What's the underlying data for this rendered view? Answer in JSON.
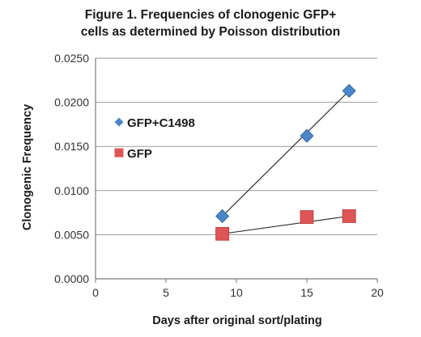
{
  "caption": {
    "line1": "Figure 1. Frequencies of clonogenic GFP+",
    "line2": "cells as determined by Poisson distribution"
  },
  "chart_data": {
    "type": "scatter",
    "title": "Figure 1. Frequencies of clonogenic GFP+ cells as determined by Poisson distribution",
    "xlabel": "Days after original sort/plating",
    "ylabel": "Clonogenic Frequency",
    "xlim": [
      0,
      20
    ],
    "ylim": [
      0,
      0.025
    ],
    "x_ticks": [
      "0",
      "5",
      "10",
      "15",
      "20"
    ],
    "y_ticks": [
      "0.0000",
      "0.0050",
      "0.0100",
      "0.0150",
      "0.0200",
      "0.0250"
    ],
    "grid": "horizontal",
    "legend_position": "left",
    "series": [
      {
        "name": "GFP+C1498",
        "marker": "diamond",
        "color": "#4a86c8",
        "trendline": true,
        "points": [
          [
            9,
            0.0071
          ],
          [
            15,
            0.0162
          ],
          [
            18,
            0.0213
          ]
        ]
      },
      {
        "name": "GFP",
        "marker": "square",
        "color": "#dd5555",
        "trendline": true,
        "points": [
          [
            9,
            0.0051
          ],
          [
            15,
            0.007
          ],
          [
            18,
            0.0071
          ]
        ]
      }
    ]
  }
}
